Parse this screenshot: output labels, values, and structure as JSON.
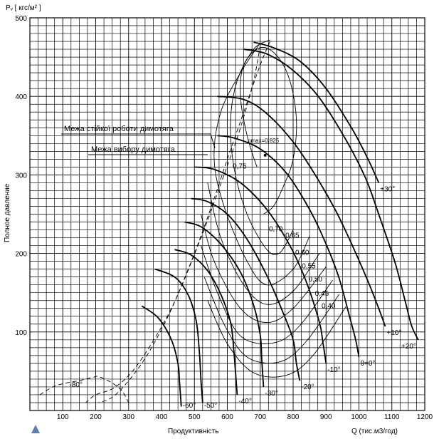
{
  "chart_data": {
    "type": "line",
    "title": "",
    "ylabel_top": "Pᵥ [ кгс/м² ]",
    "ylabel_side": "Полное давление",
    "xlabel": "Продуктивність",
    "xunit": "Q (тис.м3/год)",
    "xlim": [
      0,
      1200
    ],
    "ylim": [
      0,
      500
    ],
    "grid": true,
    "x_ticks": [
      100,
      200,
      300,
      400,
      500,
      600,
      700,
      800,
      900,
      1000,
      1100,
      1200
    ],
    "y_ticks": [
      100,
      200,
      300,
      400,
      500
    ],
    "annotations": {
      "stable_limit": "Межа стійкої роботи димотягa",
      "selection_limit": "Межа вибору димотягa",
      "eta_max": "ηmax=0,825"
    },
    "pressure_curves": [
      {
        "label": "+30°",
        "points": [
          [
            680,
            469
          ],
          [
            740,
            462
          ],
          [
            820,
            445
          ],
          [
            900,
            410
          ],
          [
            980,
            358
          ],
          [
            1030,
            318
          ],
          [
            1060,
            290
          ]
        ]
      },
      {
        "label": "+20°",
        "points": [
          [
            650,
            460
          ],
          [
            720,
            454
          ],
          [
            800,
            433
          ],
          [
            880,
            398
          ],
          [
            960,
            345
          ],
          [
            1020,
            296
          ],
          [
            1060,
            250
          ],
          [
            1110,
            188
          ],
          [
            1140,
            140
          ],
          [
            1160,
            108
          ],
          [
            1180,
            90
          ]
        ]
      },
      {
        "label": "+10°",
        "points": [
          [
            570,
            400
          ],
          [
            650,
            396
          ],
          [
            720,
            378
          ],
          [
            800,
            342
          ],
          [
            870,
            298
          ],
          [
            930,
            254
          ],
          [
            980,
            210
          ],
          [
            1030,
            162
          ],
          [
            1060,
            130
          ],
          [
            1080,
            107
          ]
        ]
      },
      {
        "label": "θ=0°",
        "points": [
          [
            570,
            350
          ],
          [
            620,
            347
          ],
          [
            700,
            333
          ],
          [
            780,
            302
          ],
          [
            850,
            256
          ],
          [
            900,
            212
          ],
          [
            940,
            168
          ],
          [
            970,
            122
          ],
          [
            990,
            90
          ],
          [
            1000,
            68
          ]
        ]
      },
      {
        "label": "-10°",
        "points": [
          [
            500,
            310
          ],
          [
            560,
            307
          ],
          [
            640,
            290
          ],
          [
            720,
            256
          ],
          [
            790,
            210
          ],
          [
            840,
            164
          ],
          [
            880,
            112
          ],
          [
            890,
            88
          ],
          [
            900,
            60
          ]
        ]
      },
      {
        "label": "-20°",
        "points": [
          [
            490,
            270
          ],
          [
            540,
            266
          ],
          [
            600,
            250
          ],
          [
            660,
            218
          ],
          [
            720,
            172
          ],
          [
            770,
            124
          ],
          [
            800,
            90
          ],
          [
            810,
            60
          ],
          [
            820,
            38
          ]
        ]
      },
      {
        "label": "-30°",
        "points": [
          [
            470,
            240
          ],
          [
            520,
            234
          ],
          [
            580,
            212
          ],
          [
            640,
            176
          ],
          [
            680,
            134
          ],
          [
            700,
            96
          ],
          [
            705,
            62
          ],
          [
            710,
            30
          ]
        ]
      },
      {
        "label": "-40°",
        "points": [
          [
            440,
            205
          ],
          [
            490,
            198
          ],
          [
            540,
            178
          ],
          [
            580,
            148
          ],
          [
            610,
            112
          ],
          [
            620,
            75
          ],
          [
            625,
            48
          ],
          [
            630,
            20
          ]
        ]
      },
      {
        "label": "-50°",
        "points": [
          [
            380,
            180
          ],
          [
            440,
            170
          ],
          [
            480,
            148
          ],
          [
            505,
            115
          ],
          [
            515,
            75
          ],
          [
            520,
            38
          ],
          [
            525,
            10
          ]
        ]
      },
      {
        "label": "-60°",
        "points": [
          [
            340,
            133
          ],
          [
            390,
            118
          ],
          [
            430,
            90
          ],
          [
            450,
            60
          ],
          [
            455,
            35
          ],
          [
            460,
            5
          ]
        ]
      },
      {
        "label": "-80°",
        "points": [
          [
            30,
            20
          ],
          [
            70,
            30
          ],
          [
            110,
            35
          ],
          [
            150,
            38
          ],
          [
            190,
            42
          ],
          [
            210,
            43
          ],
          [
            250,
            35
          ],
          [
            280,
            25
          ],
          [
            300,
            10
          ]
        ]
      }
    ],
    "efficiency_curves": [
      {
        "label": "0,75",
        "points": [
          [
            690,
            310
          ],
          [
            660,
            350
          ],
          [
            640,
            400
          ],
          [
            650,
            440
          ],
          [
            700,
            462
          ],
          [
            750,
            452
          ],
          [
            790,
            420
          ],
          [
            810,
            370
          ],
          [
            800,
            320
          ],
          [
            770,
            285
          ],
          [
            740,
            260
          ],
          [
            710,
            250
          ]
        ]
      },
      {
        "label": "0,70",
        "points": [
          [
            800,
            230
          ],
          [
            760,
            201
          ],
          [
            720,
            205
          ],
          [
            660,
            250
          ],
          [
            620,
            310
          ],
          [
            610,
            370
          ],
          [
            630,
            420
          ],
          [
            680,
            460
          ],
          [
            730,
            472
          ]
        ]
      },
      {
        "label": "0,65",
        "points": [
          [
            850,
            222
          ],
          [
            800,
            180
          ],
          [
            720,
            160
          ],
          [
            660,
            190
          ],
          [
            590,
            260
          ],
          [
            560,
            320
          ],
          [
            580,
            380
          ],
          [
            640,
            430
          ],
          [
            700,
            468
          ]
        ]
      },
      {
        "label": "0,60",
        "points": [
          [
            880,
            200
          ],
          [
            800,
            152
          ],
          [
            720,
            135
          ],
          [
            650,
            160
          ],
          [
            580,
            220
          ],
          [
            540,
            290
          ]
        ]
      },
      {
        "label": "0,55",
        "points": [
          [
            900,
            183
          ],
          [
            800,
            130
          ],
          [
            720,
            112
          ],
          [
            640,
            130
          ],
          [
            560,
            190
          ],
          [
            520,
            250
          ]
        ]
      },
      {
        "label": "0,50",
        "points": [
          [
            920,
            166
          ],
          [
            820,
            108
          ],
          [
            740,
            86
          ],
          [
            640,
            95
          ],
          [
            570,
            150
          ],
          [
            520,
            210
          ]
        ]
      },
      {
        "label": "0,45",
        "points": [
          [
            940,
            148
          ],
          [
            840,
            88
          ],
          [
            760,
            62
          ],
          [
            660,
            68
          ],
          [
            590,
            110
          ],
          [
            530,
            170
          ]
        ]
      },
      {
        "label": "0,40",
        "points": [
          [
            960,
            132
          ],
          [
            860,
            70
          ],
          [
            780,
            45
          ],
          [
            680,
            48
          ],
          [
            600,
            85
          ],
          [
            540,
            140
          ]
        ]
      }
    ],
    "stable_limit_curve": [
      [
        700,
        465
      ],
      [
        680,
        420
      ],
      [
        640,
        360
      ],
      [
        590,
        300
      ],
      [
        520,
        220
      ],
      [
        430,
        130
      ],
      [
        330,
        60
      ],
      [
        260,
        30
      ],
      [
        200,
        20
      ],
      [
        170,
        10
      ]
    ],
    "selection_limit_curve": [
      [
        730,
        470
      ],
      [
        700,
        440
      ],
      [
        650,
        380
      ],
      [
        600,
        320
      ],
      [
        560,
        270
      ],
      [
        500,
        200
      ],
      [
        420,
        120
      ],
      [
        340,
        60
      ],
      [
        260,
        20
      ],
      [
        210,
        10
      ]
    ],
    "eta_max_point": [
      715,
      325
    ]
  }
}
